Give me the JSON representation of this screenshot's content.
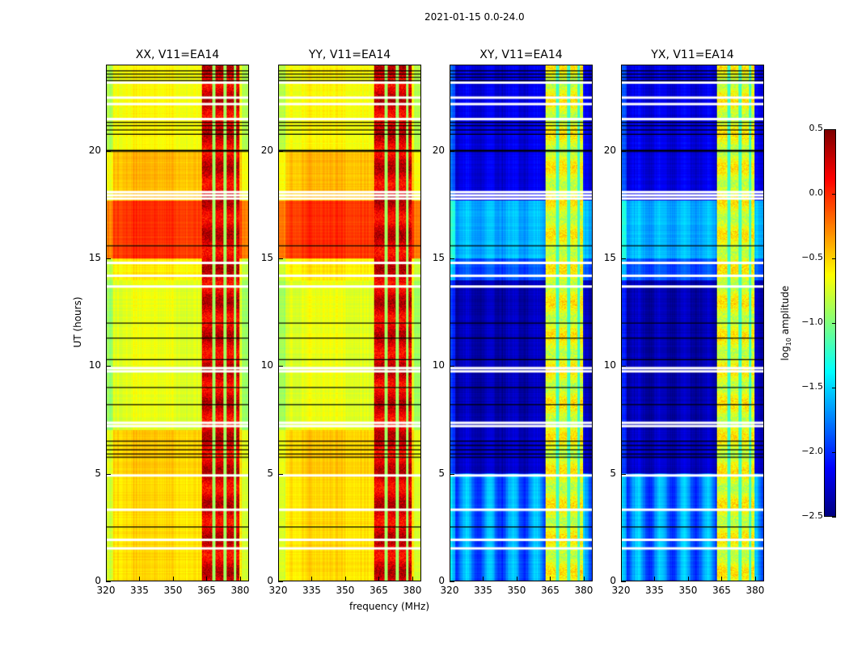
{
  "chart_data": {
    "type": "heatmap",
    "suptitle": "2021-01-15 0.0-24.0",
    "xlabel": "frequency (MHz)",
    "ylabel": "UT (hours)",
    "xlim": [
      320,
      384
    ],
    "ylim": [
      0,
      24
    ],
    "xticks": [
      320,
      335,
      350,
      365,
      380
    ],
    "yticks": [
      0,
      5,
      10,
      15,
      20
    ],
    "colorbar": {
      "label": "log10 amplitude",
      "label_main": "log",
      "label_sub": "10",
      "label_rest": " amplitude",
      "range": [
        -2.5,
        0.5
      ],
      "ticks": [
        "0.5",
        "0.0",
        "−0.5",
        "−1.0",
        "−1.5",
        "−2.0",
        "−2.5"
      ],
      "tick_values": [
        0.5,
        0.0,
        -0.5,
        -1.0,
        -1.5,
        -2.0,
        -2.5
      ],
      "colormap": "jet"
    },
    "panels": [
      {
        "title": "XX, V11=EA14",
        "kind": "parallel"
      },
      {
        "title": "YY, V11=EA14",
        "kind": "parallel"
      },
      {
        "title": "XY, V11=EA14",
        "kind": "cross"
      },
      {
        "title": "YX, V11=EA14",
        "kind": "cross"
      }
    ],
    "time_segments": [
      {
        "from": 0,
        "to": 5,
        "parallel": -0.55,
        "cross": -1.75
      },
      {
        "from": 5,
        "to": 7,
        "parallel": -0.5,
        "cross": -2.3
      },
      {
        "from": 7,
        "to": 14,
        "parallel": -0.72,
        "cross": -2.35
      },
      {
        "from": 14,
        "to": 15,
        "parallel": -0.6,
        "cross": -1.9
      },
      {
        "from": 15,
        "to": 17.7,
        "parallel": -0.05,
        "cross": -1.6
      },
      {
        "from": 17.7,
        "to": 20,
        "parallel": -0.45,
        "cross": -2.2
      },
      {
        "from": 20,
        "to": 24,
        "parallel": -0.65,
        "cross": -2.2
      }
    ],
    "rfi_band_mhz": [
      363,
      380
    ],
    "rfi_gaps_mhz": [
      368.5,
      373.5,
      378
    ],
    "rfi_level": {
      "parallel": 0.15,
      "cross": -0.75
    },
    "flagged_hours_white": [
      1.5,
      1.9,
      3.3,
      4.9,
      7.2,
      7.35,
      9.75,
      9.9,
      13.7,
      14.2,
      14.8,
      17.8,
      17.95,
      18.1,
      21.5,
      22.2,
      22.5,
      23.2
    ],
    "black_line_hours": [
      2.5,
      5.75,
      5.9,
      6.1,
      6.3,
      6.5,
      8.2,
      9.0,
      10.3,
      11.3,
      12.0,
      15.6,
      20.0,
      20.05,
      20.8,
      21.0,
      21.2,
      21.35,
      23.3,
      23.45,
      23.6,
      23.75
    ]
  }
}
